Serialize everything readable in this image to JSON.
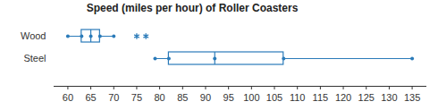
{
  "chart_data": {
    "type": "box",
    "title": "Speed (miles per hour) of Roller Coasters",
    "categories": [
      "Wood",
      "Steel"
    ],
    "boxes": [
      {
        "min": 60,
        "q1": 63,
        "median": 65,
        "q3": 67,
        "max": 70,
        "outliers": [
          75,
          77
        ]
      },
      {
        "min": 79,
        "q1": 82,
        "median": 92,
        "q3": 107,
        "max": 135,
        "outliers": []
      }
    ],
    "color": "#2b7bb9",
    "marker": "asterisk",
    "orientation": "horizontal",
    "xlim": [
      57,
      138
    ],
    "xticks": [
      60,
      65,
      70,
      75,
      80,
      85,
      90,
      95,
      100,
      105,
      110,
      115,
      120,
      125,
      130,
      135
    ],
    "grid": false
  }
}
